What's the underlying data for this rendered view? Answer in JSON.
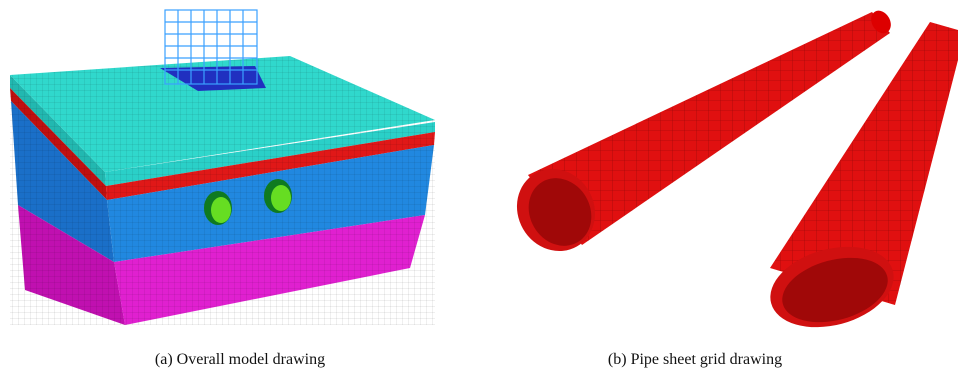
{
  "figure": {
    "panels": [
      {
        "caption": "(a) Overall model drawing"
      },
      {
        "caption": "(b) Pipe sheet grid drawing"
      }
    ]
  }
}
